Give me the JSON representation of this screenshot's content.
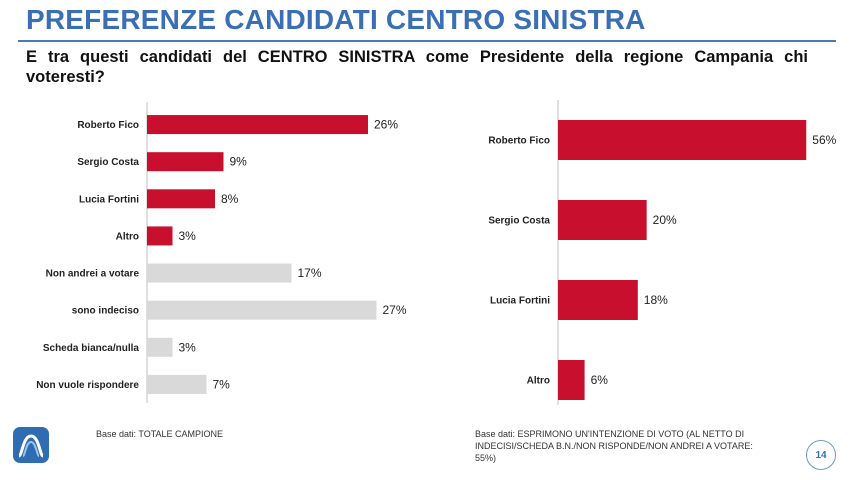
{
  "header": {
    "title": "PREFERENZE CANDIDATI CENTRO SINISTRA",
    "question": "E tra questi candidati del CENTRO SINISTRA come Presidente della regione Campania chi voteresti?"
  },
  "colors": {
    "primary": "#c8102e",
    "secondary": "#d9d9d9",
    "title": "#3a6fb5"
  },
  "chart_data": [
    {
      "type": "bar",
      "orientation": "horizontal",
      "categories": [
        "Roberto Fico",
        "Sergio Costa",
        "Lucia Fortini",
        "Altro",
        "Non andrei a votare",
        "sono indeciso",
        "Scheda bianca/nulla",
        "Non vuole rispondere"
      ],
      "values": [
        26,
        9,
        8,
        3,
        17,
        27,
        3,
        7
      ],
      "value_labels": [
        "26%",
        "9%",
        "8%",
        "3%",
        "17%",
        "27%",
        "3%",
        "7%"
      ],
      "series_colors": [
        "primary",
        "primary",
        "primary",
        "primary",
        "secondary",
        "secondary",
        "secondary",
        "secondary"
      ],
      "xlim": [
        0,
        30
      ],
      "base_note": "Base dati: TOTALE CAMPIONE"
    },
    {
      "type": "bar",
      "orientation": "horizontal",
      "categories": [
        "Roberto Fico",
        "Sergio Costa",
        "Lucia Fortini",
        "Altro"
      ],
      "values": [
        56,
        20,
        18,
        6
      ],
      "value_labels": [
        "56%",
        "20%",
        "18%",
        "6%"
      ],
      "series_colors": [
        "primary",
        "primary",
        "primary",
        "primary"
      ],
      "xlim": [
        0,
        60
      ],
      "base_note": "Base dati: ESPRIMONO UN'INTENZIONE DI VOTO (AL NETTO DI INDECISI/SCHEDA B.N./NON RISPONDE/NON ANDREI A VOTARE: 55%)"
    }
  ],
  "footer": {
    "page_number": "14"
  }
}
